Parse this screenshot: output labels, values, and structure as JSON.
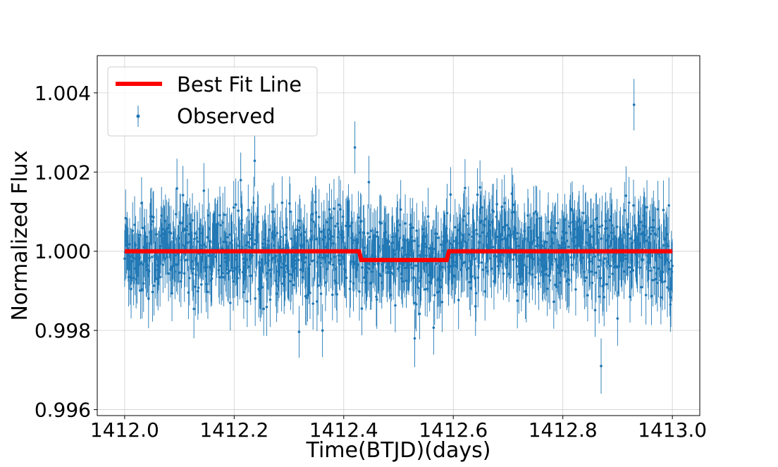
{
  "chart_data": {
    "type": "scatter",
    "title": "",
    "xlabel": "Time(BTJD)(days)",
    "ylabel": "Normalized Flux",
    "xlim": [
      1411.95,
      1413.05
    ],
    "ylim": [
      0.99585,
      1.00494
    ],
    "x_ticks": [
      1412.0,
      1412.2,
      1412.4,
      1412.6,
      1412.8,
      1413.0
    ],
    "x_tick_labels": [
      "1412.0",
      "1412.2",
      "1412.4",
      "1412.6",
      "1412.8",
      "1413.0"
    ],
    "y_ticks": [
      0.996,
      0.998,
      1.0,
      1.002,
      1.004
    ],
    "y_tick_labels": [
      "0.996",
      "0.998",
      "1.000",
      "1.002",
      "1.004"
    ],
    "grid": true,
    "legend": {
      "position": "top-left"
    },
    "series": [
      {
        "name": "Best Fit Line",
        "kind": "line",
        "color": "#ff0000",
        "x": [
          1412.0,
          1412.428,
          1412.432,
          1412.588,
          1412.592,
          1413.0
        ],
        "y": [
          1.0,
          1.0,
          0.99978,
          0.99978,
          1.0,
          1.0
        ]
      },
      {
        "name": "Observed",
        "kind": "errorbar",
        "color": "#1f77b4",
        "n_points": 1100,
        "x_range": [
          1412.0,
          1413.0
        ],
        "scatter_std": 0.0006,
        "yerr": 0.0007,
        "notable_points": [
          {
            "x": 1412.93,
            "y": 1.0037
          },
          {
            "x": 1412.42,
            "y": 1.00262
          },
          {
            "x": 1412.87,
            "y": 0.9971
          },
          {
            "x": 1412.53,
            "y": 0.9978
          }
        ]
      }
    ]
  }
}
